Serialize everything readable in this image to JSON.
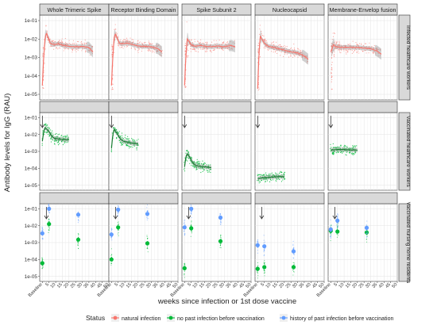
{
  "chart_data": {
    "type": "scatter",
    "ylabel": "Antibody levels for IgG (RAU)",
    "xlabel": "weeks since infection or 1st dose vaccine",
    "y_scale": "log10",
    "ylim": [
      5e-06,
      0.2
    ],
    "y_ticks": [
      1e-05,
      0.0001,
      0.001,
      0.01,
      0.1
    ],
    "y_tick_labels": [
      "1e-05",
      "1e-04",
      "1e-03",
      "1e-02",
      "1e-01"
    ],
    "xlim": [
      -2,
      50
    ],
    "x_ticks": [
      0,
      5,
      10,
      15,
      20,
      25,
      30,
      35,
      40,
      45,
      50
    ],
    "x_tick_labels": [
      "Baseline",
      "5",
      "10",
      "15",
      "20",
      "25",
      "30",
      "35",
      "40",
      "45",
      "50"
    ],
    "columns": [
      "Whole Trimeric Spike",
      "Receptor Binding Domain",
      "Spike Subunit 2",
      "Nucleocapsid",
      "Membrane-Envelop fusion"
    ],
    "rows": [
      "Infected healthcare workers",
      "Vaccinated healthcare workers",
      "Vaccinated nursing home residents"
    ],
    "legend": {
      "title": "Status",
      "position": "bottom",
      "entries": [
        {
          "label": "natural infection",
          "color": "#F8766D"
        },
        {
          "label": "no past infection before vaccination",
          "color": "#00BA38"
        },
        {
          "label": "history of past infection before vaccination",
          "color": "#619CFF"
        }
      ]
    },
    "annotations": "downward arrows mark vaccination in vaccinated rows",
    "panels": {
      "infected": [
        {
          "trend_x": [
            0,
            1,
            2,
            3,
            4,
            6,
            8,
            12,
            16,
            20,
            25,
            30,
            35,
            38
          ],
          "trend_y": [
            3e-05,
            0.0012,
            0.01,
            0.022,
            0.014,
            0.006,
            0.005,
            0.0055,
            0.0045,
            0.004,
            0.0038,
            0.004,
            0.0035,
            0.002
          ]
        },
        {
          "trend_x": [
            0,
            1,
            2,
            3,
            4,
            6,
            8,
            12,
            16,
            20,
            25,
            30,
            35,
            38
          ],
          "trend_y": [
            3e-05,
            0.0012,
            0.012,
            0.02,
            0.012,
            0.006,
            0.0055,
            0.006,
            0.005,
            0.0042,
            0.004,
            0.0038,
            0.003,
            0.002
          ]
        },
        {
          "trend_x": [
            0,
            1,
            2,
            3,
            5,
            8,
            12,
            16,
            20,
            25,
            30,
            35,
            38
          ],
          "trend_y": [
            3e-05,
            0.0015,
            0.01,
            0.008,
            0.005,
            0.004,
            0.0045,
            0.004,
            0.0038,
            0.0042,
            0.0038,
            0.0045,
            0.0038
          ]
        },
        {
          "trend_x": [
            0,
            1,
            2,
            3,
            5,
            8,
            12,
            16,
            20,
            25,
            30,
            35,
            38
          ],
          "trend_y": [
            2e-05,
            0.002,
            0.015,
            0.01,
            0.006,
            0.004,
            0.0035,
            0.003,
            0.0025,
            0.002,
            0.0018,
            0.0012,
            0.0008
          ]
        },
        {
          "trend_x": [
            0,
            1,
            2,
            3,
            5,
            8,
            12,
            16,
            20,
            25,
            30,
            35,
            38
          ],
          "trend_y": [
            0.002,
            0.003,
            0.005,
            0.004,
            0.0038,
            0.0035,
            0.0036,
            0.0035,
            0.0035,
            0.0032,
            0.003,
            0.0022,
            0.0015
          ]
        }
      ],
      "vaccinated_hcw": [
        {
          "trend_x": [
            0,
            1,
            2,
            3,
            5,
            7,
            9,
            12,
            16,
            20
          ],
          "trend_y": [
            0.004,
            0.015,
            0.025,
            0.022,
            0.015,
            0.008,
            0.006,
            0.0055,
            0.005,
            0.005
          ]
        },
        {
          "trend_x": [
            0,
            1,
            2,
            3,
            5,
            7,
            9,
            12,
            16,
            20
          ],
          "trend_y": [
            0.0015,
            0.01,
            0.02,
            0.016,
            0.009,
            0.005,
            0.004,
            0.0035,
            0.003,
            0.0028
          ]
        },
        {
          "trend_x": [
            0,
            1,
            2,
            3,
            5,
            7,
            9,
            12,
            16,
            20
          ],
          "trend_y": [
            0.00012,
            0.0005,
            0.0007,
            0.0006,
            0.0003,
            0.00018,
            0.00014,
            0.00013,
            0.00012,
            0.00011
          ]
        },
        {
          "trend_x": [
            0,
            5,
            10,
            15,
            20
          ],
          "trend_y": [
            2.5e-05,
            2.8e-05,
            3e-05,
            3.2e-05,
            3.2e-05
          ]
        },
        {
          "trend_x": [
            0,
            5,
            10,
            15,
            20
          ],
          "trend_y": [
            0.0012,
            0.0013,
            0.0013,
            0.0012,
            0.0012
          ]
        }
      ],
      "nursing_home": [
        {
          "green": [
            [
              0,
              6e-05
            ],
            [
              5,
              0.0125
            ],
            [
              27,
              0.0015
            ]
          ],
          "blue": [
            [
              0,
              0.0035
            ],
            [
              5,
              0.1
            ],
            [
              27,
              0.045
            ]
          ]
        },
        {
          "green": [
            [
              0,
              0.0001
            ],
            [
              5,
              0.008
            ],
            [
              27,
              0.0009
            ]
          ],
          "blue": [
            [
              0,
              0.003
            ],
            [
              5,
              0.09
            ],
            [
              27,
              0.05
            ]
          ]
        },
        {
          "green": [
            [
              0,
              3e-05
            ],
            [
              5,
              0.007
            ],
            [
              27,
              0.0012
            ]
          ],
          "blue": [
            [
              0,
              0.008
            ],
            [
              5,
              0.1
            ],
            [
              27,
              0.03
            ]
          ]
        },
        {
          "green": [
            [
              0,
              2.8e-05
            ],
            [
              5,
              3.5e-05
            ],
            [
              27,
              3.5e-05
            ]
          ],
          "blue": [
            [
              0,
              0.0007
            ],
            [
              5,
              0.0006
            ],
            [
              27,
              0.0003
            ]
          ]
        },
        {
          "green": [
            [
              0,
              0.005
            ],
            [
              5,
              0.0045
            ],
            [
              27,
              0.004
            ]
          ],
          "blue": [
            [
              0,
              0.006
            ],
            [
              5,
              0.02
            ],
            [
              27,
              0.0075
            ]
          ]
        }
      ]
    }
  }
}
